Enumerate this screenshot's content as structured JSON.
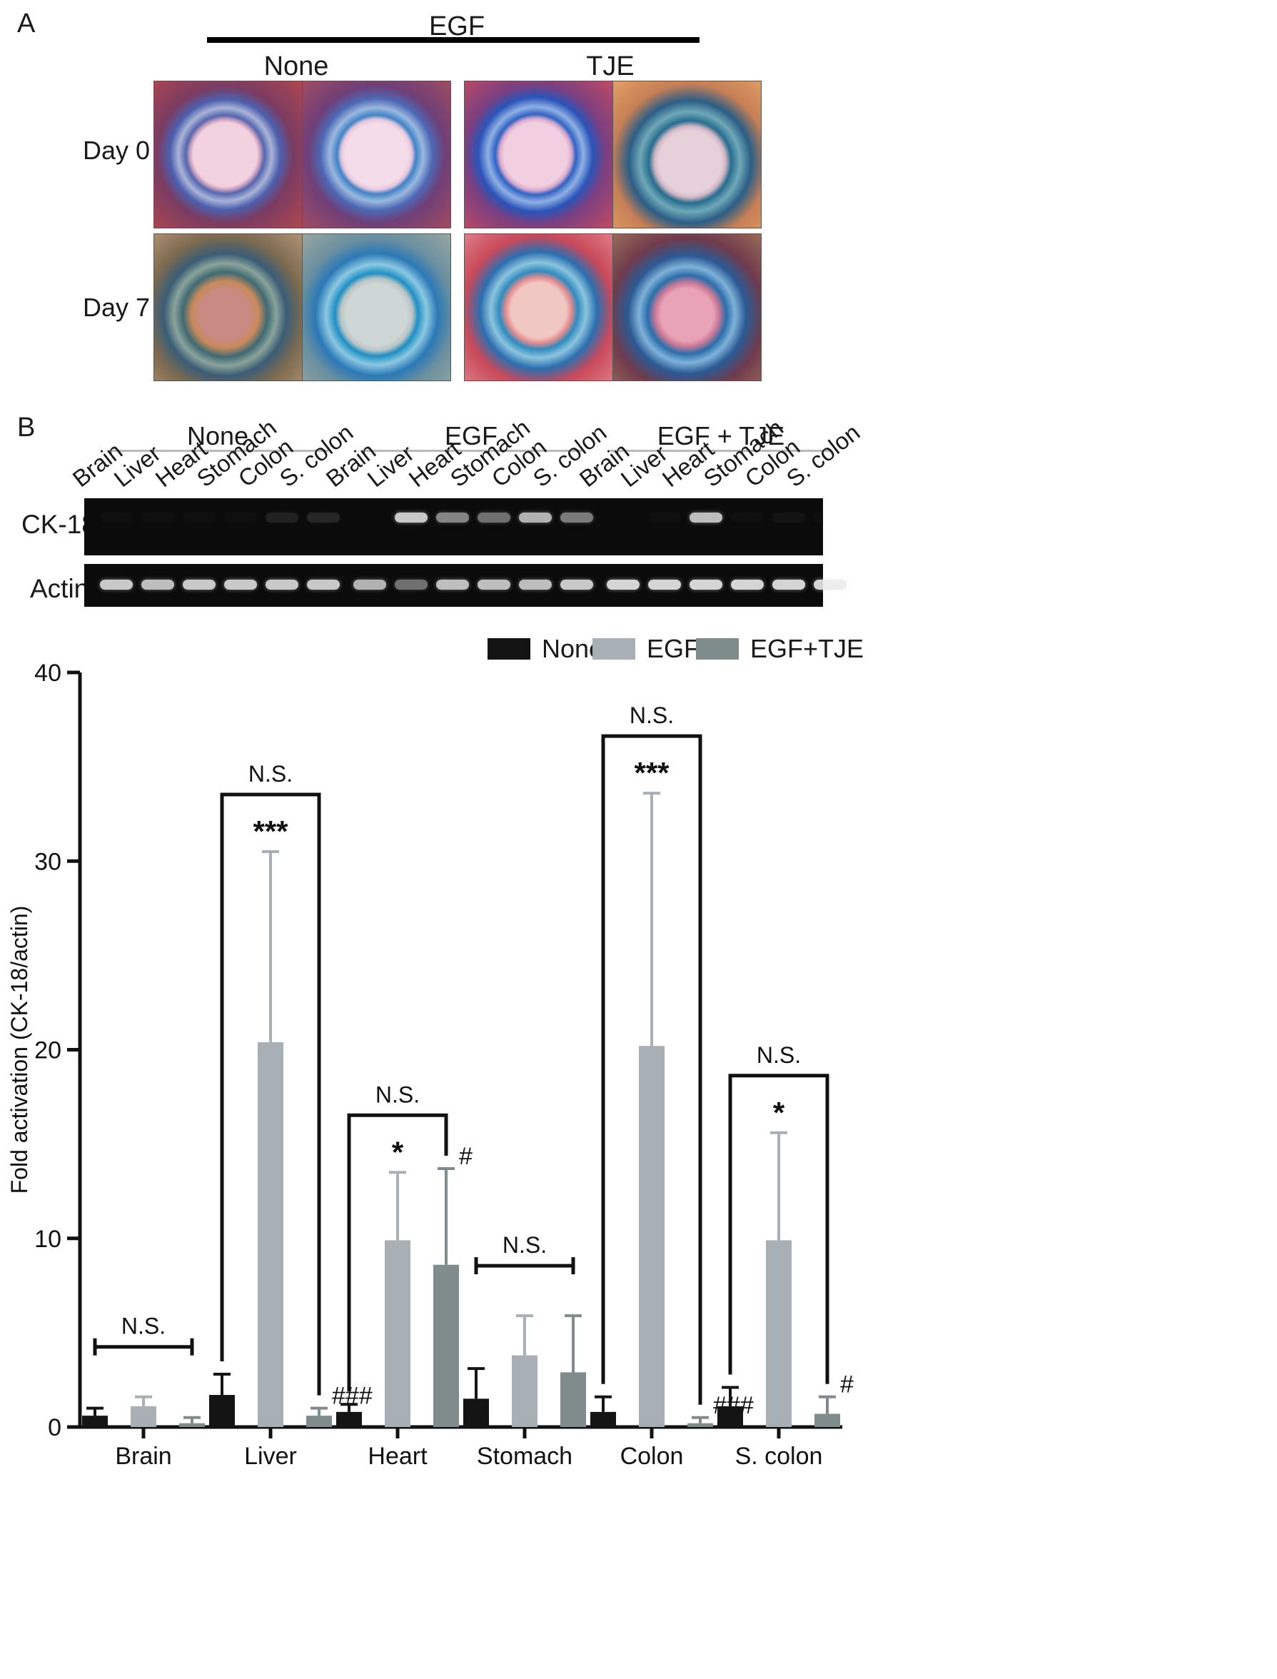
{
  "panel_a": {
    "letter": "A",
    "treatment_label": "EGF",
    "group_labels": [
      "None",
      "TJE"
    ],
    "row_labels": [
      "Day 0",
      "Day 7"
    ]
  },
  "panel_b": {
    "letter": "B",
    "group_labels": [
      "None",
      "EGF",
      "EGF + TJE"
    ],
    "lane_labels": [
      "Brain",
      "Liver",
      "Heart",
      "Stomach",
      "Colon",
      "S. colon",
      "Brain",
      "Liver",
      "Heart",
      "Stomach",
      "Colon",
      "S. colon",
      "Brain",
      "Liver",
      "Heart",
      "Stomach",
      "Colon",
      "S. colon"
    ],
    "gel_labels": [
      "CK-18",
      "Actin"
    ]
  },
  "chart_data": {
    "type": "bar",
    "ylabel": "Fold activation (CK-18/actin)",
    "xlabel": "",
    "ylim": [
      0,
      40
    ],
    "yticks": [
      0,
      10,
      20,
      30,
      40
    ],
    "legend_position": "top-right",
    "categories": [
      "Brain",
      "Liver",
      "Heart",
      "Stomach",
      "Colon",
      "S. colon"
    ],
    "series": [
      {
        "name": "None",
        "color": "#141414",
        "values": [
          0.6,
          1.7,
          0.8,
          1.5,
          0.8,
          1.1
        ],
        "errors": [
          0.4,
          1.1,
          0.4,
          1.6,
          0.8,
          1.0
        ]
      },
      {
        "name": "EGF",
        "color": "#a8b0b5",
        "values": [
          1.1,
          20.4,
          9.9,
          3.8,
          20.2,
          9.9
        ],
        "errors": [
          0.5,
          10.1,
          3.6,
          2.1,
          13.4,
          5.7
        ]
      },
      {
        "name": "EGF+TJE",
        "color": "#808b8c",
        "values": [
          0.2,
          0.6,
          8.6,
          2.9,
          0.2,
          0.7
        ],
        "errors": [
          0.3,
          0.4,
          5.1,
          3.0,
          0.3,
          0.9
        ]
      }
    ],
    "significance_top": [
      "",
      "***",
      "*",
      "",
      "***",
      "*"
    ],
    "significance_right": [
      "",
      "###",
      "#",
      "",
      "###",
      "#"
    ],
    "comparison_labels": [
      "N.S.",
      "N.S.",
      "N.S.",
      "N.S.",
      "N.S.",
      "N.S."
    ]
  }
}
